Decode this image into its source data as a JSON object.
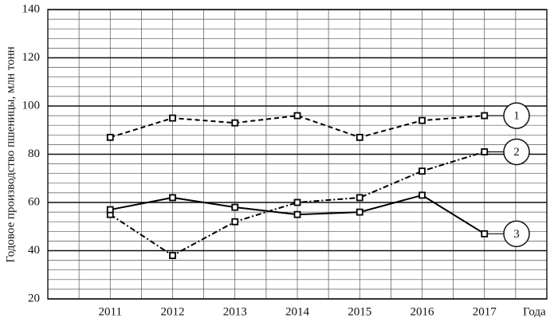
{
  "chart_data": {
    "type": "line",
    "y_label": "Годовое производство пшеницы, млн тонн",
    "x_label": "Года",
    "x": [
      2011,
      2012,
      2013,
      2014,
      2015,
      2016,
      2017
    ],
    "xlim": [
      2010,
      2018
    ],
    "xticks": [
      2011,
      2012,
      2013,
      2014,
      2015,
      2016,
      2017
    ],
    "ylim": [
      20,
      140
    ],
    "yticks": [
      20,
      40,
      60,
      80,
      100,
      120,
      140
    ],
    "grid": true,
    "series": [
      {
        "name": "1",
        "color": "#000000",
        "dash": "dashed",
        "values": [
          87,
          95,
          93,
          96,
          87,
          94,
          96
        ]
      },
      {
        "name": "2",
        "color": "#000000",
        "dash": "dashdot",
        "values": [
          55,
          38,
          52,
          60,
          62,
          73,
          81
        ]
      },
      {
        "name": "3",
        "color": "#000000",
        "dash": "solid",
        "values": [
          57,
          62,
          58,
          55,
          56,
          63,
          47
        ]
      }
    ]
  }
}
